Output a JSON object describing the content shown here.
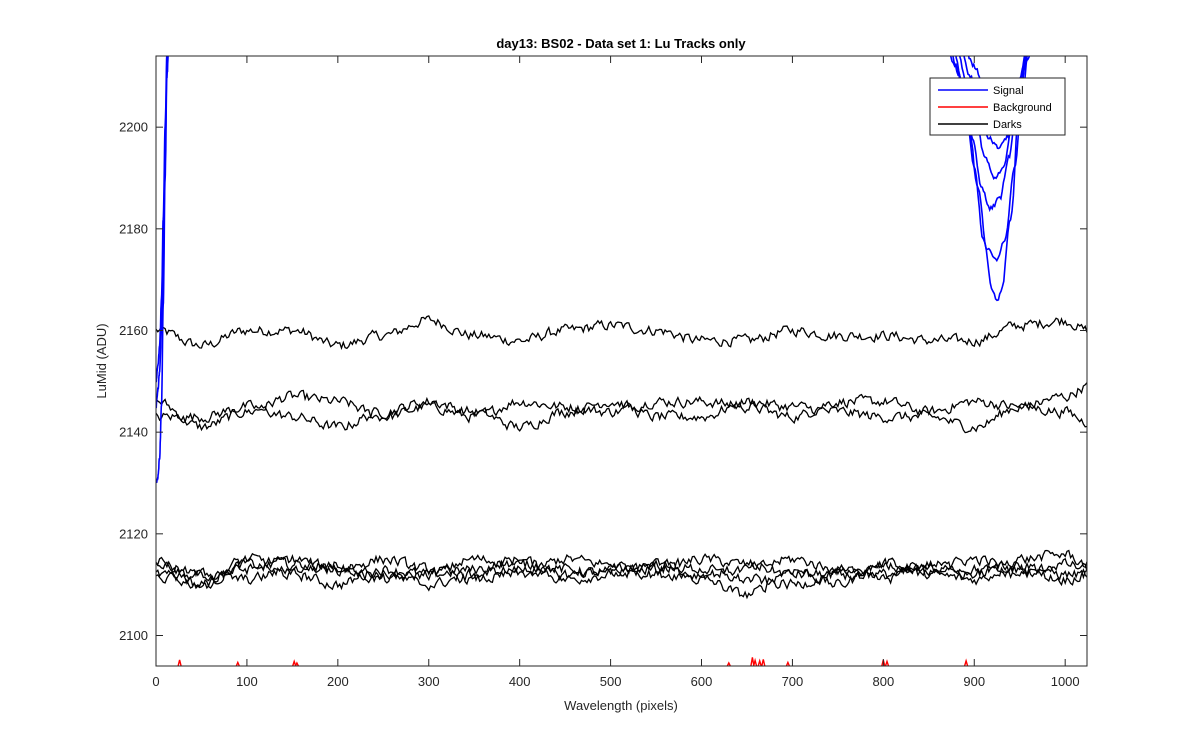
{
  "chart_data": {
    "type": "line",
    "title": "day13: BS02 - Data set 1: Lu Tracks only",
    "xlabel": "Wavelength (pixels)",
    "ylabel": "LuMid (ADU)",
    "xlim": [
      0,
      1024
    ],
    "ylim": [
      2094,
      2214
    ],
    "xticks": [
      0,
      100,
      200,
      300,
      400,
      500,
      600,
      700,
      800,
      900,
      1000
    ],
    "yticks": [
      2100,
      2120,
      2140,
      2160,
      2180,
      2200
    ],
    "grid": false,
    "legend": {
      "placement": "top-right",
      "entries": [
        {
          "name": "Signal",
          "color": "#0000ff"
        },
        {
          "name": "Background",
          "color": "#ff0000"
        },
        {
          "name": "Darks",
          "color": "#000000"
        }
      ]
    },
    "series": [
      {
        "name": "Signal",
        "color": "#0000ff",
        "note_offscale": "values exceed ylim; only rising edge near x=0-15 and dip near x=880-950 visible",
        "curves": [
          {
            "x": [
              0,
              2,
              4,
              6,
              8,
              10,
              12,
              14
            ],
            "y": [
              2130,
              2131,
              2135,
              2145,
              2165,
              2190,
              2210,
              2216
            ]
          },
          {
            "x": [
              0,
              2,
              4,
              6,
              8,
              10,
              12,
              14
            ],
            "y": [
              2145,
              2148,
              2152,
              2160,
              2175,
              2195,
              2212,
              2216
            ]
          },
          {
            "x": [
              0,
              2,
              4,
              6,
              8,
              10,
              12,
              14
            ],
            "y": [
              2150,
              2153,
              2157,
              2166,
              2182,
              2200,
              2214,
              2216
            ]
          },
          {
            "x": [
              868,
              880,
              890,
              900,
              910,
              920,
              925,
              930,
              940,
              950,
              958
            ],
            "y": [
              2216,
              2212,
              2205,
              2192,
              2178,
              2168,
              2166,
              2168,
              2182,
              2205,
              2216
            ]
          },
          {
            "x": [
              872,
              884,
              894,
              904,
              914,
              924,
              934,
              944,
              954,
              960
            ],
            "y": [
              2216,
              2210,
              2200,
              2188,
              2176,
              2174,
              2178,
              2192,
              2208,
              2216
            ]
          },
          {
            "x": [
              876,
              888,
              898,
              908,
              918,
              928,
              938,
              948,
              958
            ],
            "y": [
              2216,
              2208,
              2198,
              2188,
              2184,
              2186,
              2194,
              2206,
              2216
            ]
          },
          {
            "x": [
              880,
              892,
              902,
              912,
              922,
              932,
              942,
              952,
              960
            ],
            "y": [
              2216,
              2209,
              2201,
              2194,
              2190,
              2192,
              2200,
              2210,
              2216
            ]
          },
          {
            "x": [
              884,
              896,
              906,
              916,
              926,
              936,
              946,
              954,
              962
            ],
            "y": [
              2216,
              2210,
              2204,
              2198,
              2196,
              2198,
              2205,
              2212,
              2216
            ]
          },
          {
            "x": [
              888,
              900,
              910,
              920,
              930,
              940,
              950,
              958,
              964
            ],
            "y": [
              2216,
              2212,
              2208,
              2204,
              2202,
              2204,
              2208,
              2213,
              2216
            ]
          }
        ]
      },
      {
        "name": "Background",
        "color": "#ff0000",
        "spikes": [
          {
            "x": 26,
            "y": 2095.2
          },
          {
            "x": 90,
            "y": 2094.7
          },
          {
            "x": 152,
            "y": 2094.9
          },
          {
            "x": 155,
            "y": 2094.6
          },
          {
            "x": 630,
            "y": 2094.6
          },
          {
            "x": 656,
            "y": 2095.7
          },
          {
            "x": 659,
            "y": 2095.1
          },
          {
            "x": 664,
            "y": 2095.0
          },
          {
            "x": 668,
            "y": 2095.3
          },
          {
            "x": 695,
            "y": 2094.7
          },
          {
            "x": 800,
            "y": 2095.2
          },
          {
            "x": 804,
            "y": 2094.9
          },
          {
            "x": 891,
            "y": 2095.0
          }
        ]
      },
      {
        "name": "Darks",
        "color": "#000000",
        "traces": [
          {
            "x": [
              0,
              50,
              100,
              150,
              200,
              250,
              300,
              350,
              400,
              450,
              500,
              550,
              600,
              650,
              700,
              750,
              800,
              850,
              900,
              950,
              1000,
              1024
            ],
            "y": [
              2160,
              2157,
              2160,
              2160,
              2157,
              2159,
              2162,
              2159,
              2158,
              2160,
              2161,
              2160,
              2158,
              2158,
              2160,
              2159,
              2159,
              2158,
              2158,
              2161,
              2162,
              2160
            ]
          },
          {
            "x": [
              0,
              50,
              100,
              150,
              200,
              250,
              300,
              350,
              400,
              450,
              500,
              550,
              600,
              650,
              700,
              750,
              800,
              850,
              900,
              950,
              1000,
              1024
            ],
            "y": [
              2146,
              2141,
              2144,
              2147,
              2146,
              2143,
              2145,
              2143,
              2146,
              2145,
              2144,
              2146,
              2146,
              2145,
              2143,
              2146,
              2146,
              2144,
              2146,
              2145,
              2147,
              2149
            ]
          },
          {
            "x": [
              0,
              50,
              100,
              150,
              200,
              250,
              300,
              350,
              400,
              450,
              500,
              550,
              600,
              650,
              700,
              750,
              800,
              850,
              900,
              950,
              1000,
              1024
            ],
            "y": [
              2143,
              2143,
              2145,
              2143,
              2141,
              2144,
              2146,
              2144,
              2141,
              2144,
              2146,
              2143,
              2143,
              2146,
              2145,
              2144,
              2143,
              2143,
              2141,
              2145,
              2144,
              2142
            ]
          },
          {
            "x": [
              0,
              50,
              100,
              150,
              200,
              250,
              300,
              350,
              400,
              450,
              500,
              550,
              600,
              650,
              700,
              750,
              800,
              850,
              900,
              950,
              1000,
              1024
            ],
            "y": [
              2115,
              2110,
              2114,
              2112,
              2110,
              2113,
              2112,
              2113,
              2115,
              2111,
              2112,
              2114,
              2111,
              2108,
              2113,
              2110,
              2114,
              2112,
              2111,
              2114,
              2112,
              2112
            ]
          },
          {
            "x": [
              0,
              50,
              100,
              150,
              200,
              250,
              300,
              350,
              400,
              450,
              500,
              550,
              600,
              650,
              700,
              750,
              800,
              850,
              900,
              950,
              1000,
              1024
            ],
            "y": [
              2112,
              2110,
              2115,
              2114,
              2113,
              2111,
              2112,
              2115,
              2114,
              2113,
              2112,
              2113,
              2115,
              2114,
              2112,
              2112,
              2111,
              2114,
              2113,
              2112,
              2114,
              2113
            ]
          },
          {
            "x": [
              0,
              50,
              100,
              150,
              200,
              250,
              300,
              350,
              400,
              450,
              500,
              550,
              600,
              650,
              700,
              750,
              800,
              850,
              900,
              950,
              1000,
              1024
            ],
            "y": [
              2111,
              2112,
              2113,
              2115,
              2113,
              2115,
              2113,
              2111,
              2112,
              2115,
              2114,
              2112,
              2112,
              2113,
              2115,
              2113,
              2112,
              2113,
              2115,
              2113,
              2111,
              2112
            ]
          },
          {
            "x": [
              0,
              50,
              100,
              150,
              200,
              250,
              300,
              350,
              400,
              450,
              500,
              550,
              600,
              650,
              700,
              750,
              800,
              850,
              900,
              950,
              1000,
              1024
            ],
            "y": [
              2114,
              2112,
              2111,
              2113,
              2114,
              2112,
              2110,
              2112,
              2113,
              2112,
              2113,
              2114,
              2113,
              2111,
              2110,
              2112,
              2114,
              2113,
              2112,
              2115,
              2116,
              2114
            ]
          }
        ]
      }
    ]
  }
}
